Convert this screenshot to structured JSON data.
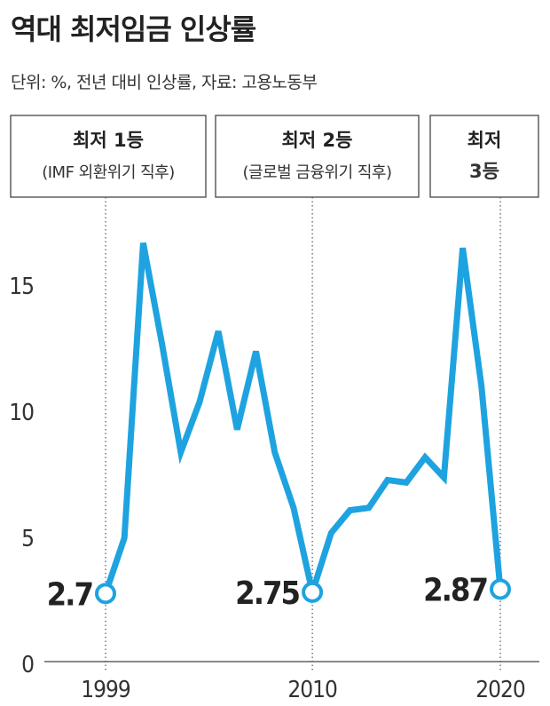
{
  "header": {
    "title": "역대 최저임금 인상률",
    "subtitle": "단위: %, 전년 대비 인상률, 자료: 고용노동부"
  },
  "chart_data": {
    "type": "line",
    "title": "역대 최저임금 인상률",
    "subtitle": "단위: %, 전년 대비 인상률, 자료: 고용노동부",
    "xlabel": "",
    "ylabel": "",
    "x_ticks": [
      1999,
      2010,
      2020
    ],
    "y_ticks": [
      0,
      5,
      10,
      15
    ],
    "xlim": [
      1996,
      2023
    ],
    "ylim": [
      0,
      17.5
    ],
    "grid": false,
    "series_color": "#1ea3e0",
    "series": [
      {
        "x": [
          1999,
          2000,
          2001,
          2002,
          2003,
          2004,
          2005,
          2006,
          2007,
          2008,
          2009,
          2010,
          2011,
          2012,
          2013,
          2014,
          2015,
          2016,
          2017,
          2018,
          2019,
          2020
        ],
        "values": [
          2.7,
          4.9,
          16.6,
          12.6,
          8.3,
          10.3,
          13.1,
          9.2,
          12.3,
          8.3,
          6.1,
          2.75,
          5.1,
          6.0,
          6.1,
          7.2,
          7.1,
          8.1,
          7.3,
          16.4,
          10.9,
          2.87
        ]
      }
    ],
    "annotations": [
      {
        "year": 1999,
        "value_label": "2.7",
        "box_line1": "최저 1등",
        "box_line2": "(IMF 외환위기 직후)"
      },
      {
        "year": 2010,
        "value_label": "2.75",
        "box_line1": "최저 2등",
        "box_line2": "(글로벌 금융위기 직후)"
      },
      {
        "year": 2020,
        "value_label": "2.87",
        "box_line1": "최저",
        "box_line2": "3등"
      }
    ]
  }
}
